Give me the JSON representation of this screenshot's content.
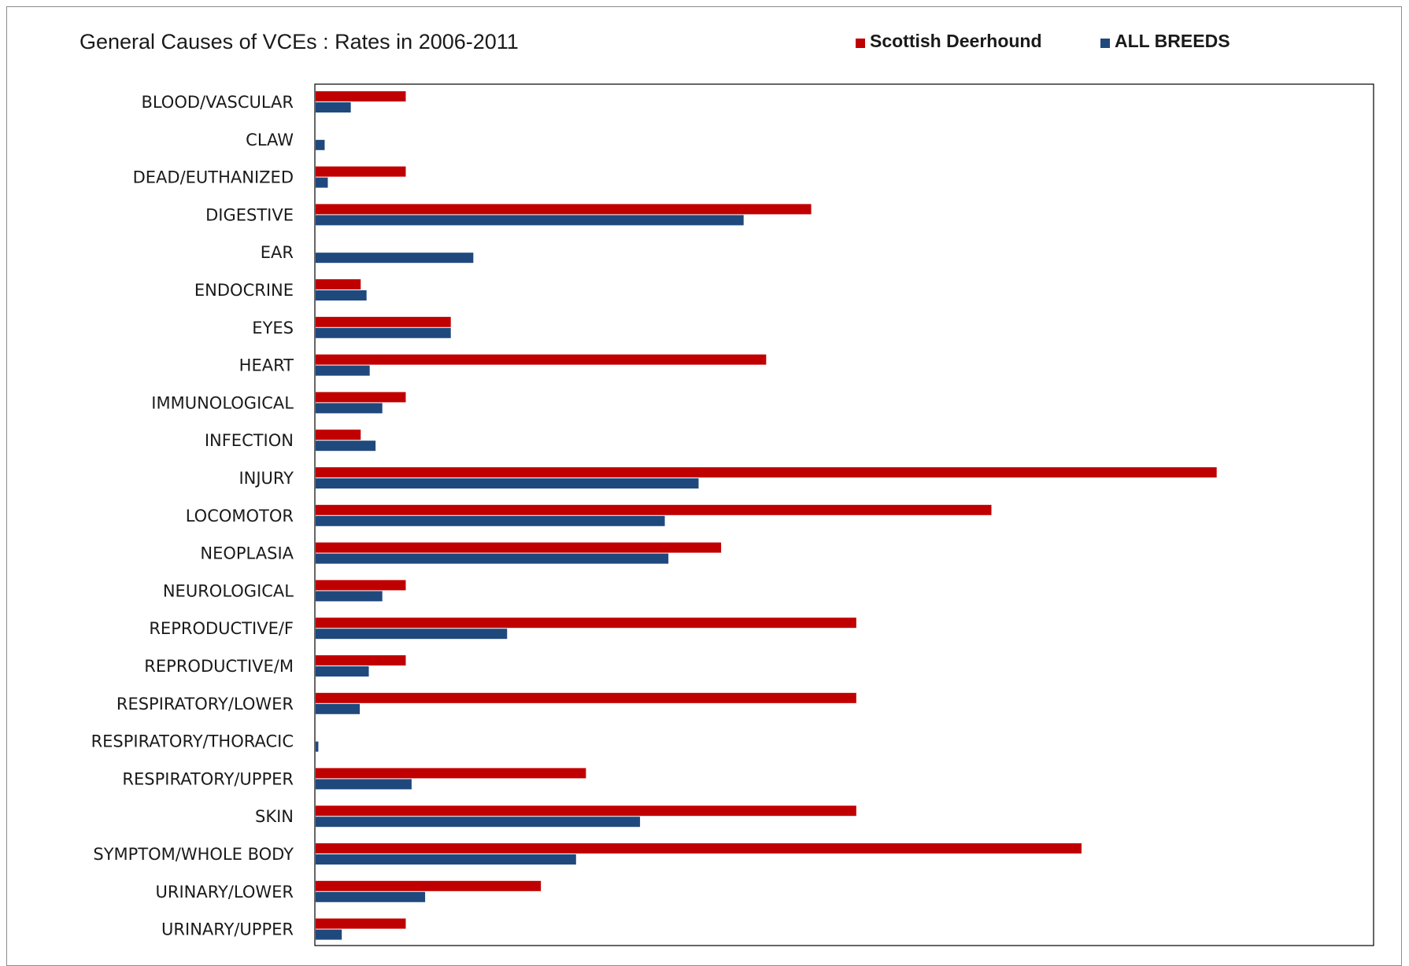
{
  "chart_data": {
    "type": "bar",
    "orientation": "horizontal",
    "title": "General Causes of VCEs : Rates in 2006-2011",
    "categories": [
      "BLOOD/VASCULAR",
      "CLAW",
      "DEAD/EUTHANIZED",
      "DIGESTIVE",
      "EAR",
      "ENDOCRINE",
      "EYES",
      "HEART",
      "IMMUNOLOGICAL",
      "INFECTION",
      "INJURY",
      "LOCOMOTOR",
      "NEOPLASIA",
      "NEUROLOGICAL",
      "REPRODUCTIVE/F",
      "REPRODUCTIVE/M",
      "RESPIRATORY/LOWER",
      "RESPIRATORY/THORACIC",
      "RESPIRATORY/UPPER",
      "SKIN",
      "SYMPTOM/WHOLE BODY",
      "URINARY/LOWER",
      "URINARY/UPPER"
    ],
    "series": [
      {
        "name": "Scottish Deerhound",
        "color": "#c00000",
        "values": [
          2,
          0,
          2,
          11,
          0,
          1,
          3,
          10,
          2,
          1,
          20,
          15,
          9,
          2,
          12,
          2,
          12,
          0,
          6,
          12,
          17,
          5,
          2
        ]
      },
      {
        "name": "ALL BREEDS",
        "color": "#1f497d",
        "values": [
          0.78,
          0.2,
          0.27,
          9.5,
          3.5,
          1.13,
          3.0,
          1.2,
          1.48,
          1.33,
          8.5,
          7.75,
          7.83,
          1.48,
          4.25,
          1.18,
          0.98,
          0.06,
          2.13,
          7.2,
          5.78,
          2.43,
          0.58
        ]
      }
    ],
    "xlim": [
      0,
      23.5
    ],
    "grid": false,
    "legend_position": "top-right"
  }
}
